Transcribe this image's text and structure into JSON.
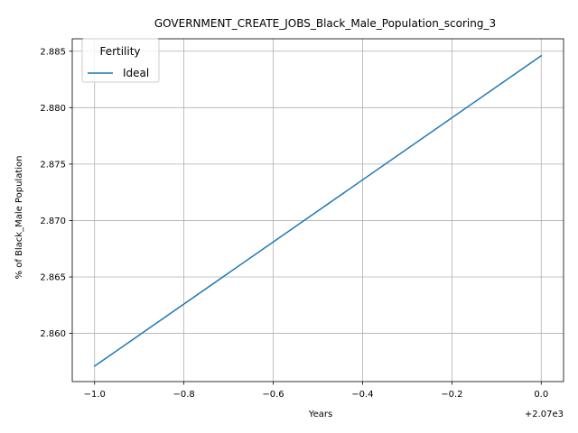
{
  "chart_data": {
    "type": "line",
    "title": "GOVERNMENT_CREATE_JOBS_Black_Male_Population_scoring_3",
    "xlabel": "Years",
    "ylabel": "% of Black_Male Population",
    "x_offset_text": "+2.07e3",
    "x_ticks": [
      -1.0,
      -0.8,
      -0.6,
      -0.4,
      -0.2,
      0.0
    ],
    "x_tick_labels": [
      "−1.0",
      "−0.8",
      "−0.6",
      "−0.4",
      "−0.2",
      "0.0"
    ],
    "y_ticks": [
      2.86,
      2.865,
      2.87,
      2.875,
      2.88,
      2.885
    ],
    "y_tick_labels": [
      "2.860",
      "2.865",
      "2.870",
      "2.875",
      "2.880",
      "2.885"
    ],
    "xlim": [
      -1.05,
      0.05
    ],
    "ylim": [
      2.85573,
      2.8861
    ],
    "grid": true,
    "legend": {
      "title": "Fertility",
      "placement": "upper-left"
    },
    "series": [
      {
        "name": "Ideal",
        "color": "#1f77b4",
        "x": [
          -1.0,
          0.0
        ],
        "y": [
          2.8571,
          2.8846
        ]
      }
    ]
  }
}
